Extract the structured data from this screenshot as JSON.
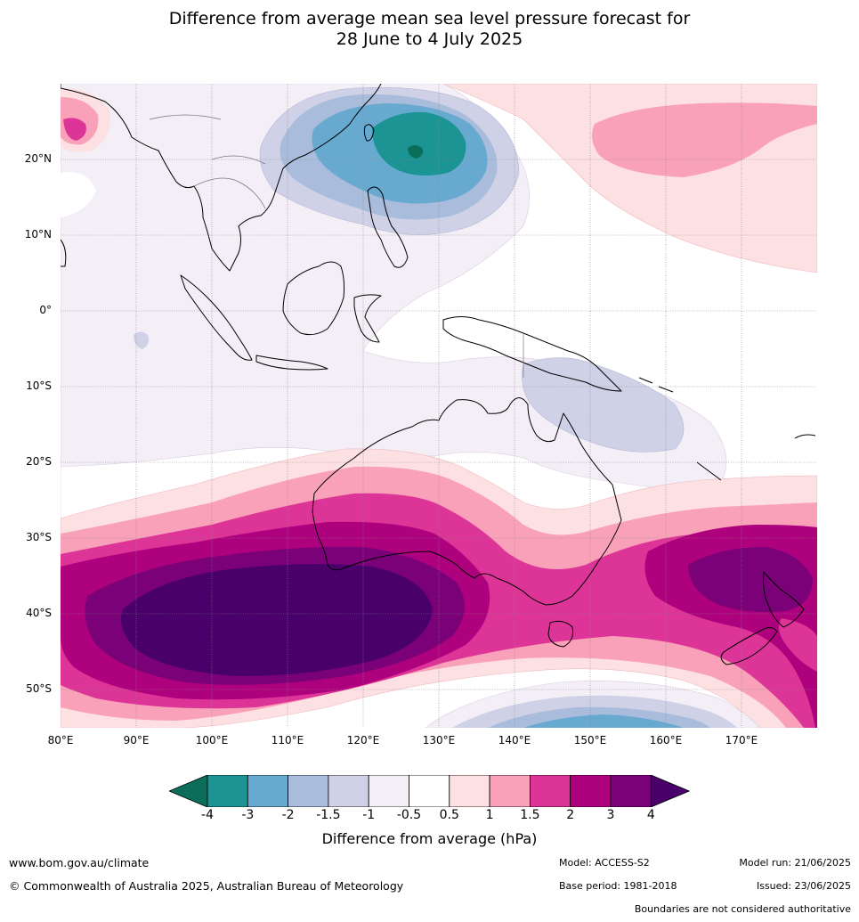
{
  "title": {
    "line1": "Difference from average mean sea level pressure forecast for",
    "line2": "28 June to 4 July 2025"
  },
  "map": {
    "lon_range": [
      80,
      180
    ],
    "lat_range": [
      -55,
      30
    ],
    "lat_ticks": [
      "20°N",
      "10°N",
      "0°",
      "10°S",
      "20°S",
      "30°S",
      "40°S",
      "50°S"
    ],
    "lon_ticks": [
      "80°E",
      "90°E",
      "100°E",
      "110°E",
      "120°E",
      "130°E",
      "140°E",
      "150°E",
      "160°E",
      "170°E"
    ],
    "features": [
      {
        "name": "low-east-of-philippines",
        "center_lon": 127,
        "center_lat": 21,
        "min_anomaly": -4
      },
      {
        "name": "high-southern-indian-ocean",
        "center_lon": 108,
        "center_lat": -40,
        "max_anomaly": 4
      },
      {
        "name": "high-new-zealand",
        "center_lon": 170,
        "center_lat": -36,
        "max_anomaly": 3
      },
      {
        "name": "high-north-pacific",
        "center_lon": 160,
        "center_lat": 25,
        "max_anomaly": 1.5
      },
      {
        "name": "low-southern-ocean",
        "center_lon": 150,
        "center_lat": -54,
        "min_anomaly": -2.5
      }
    ]
  },
  "colorbar": {
    "ticks": [
      "-4",
      "-3",
      "-2",
      "-1.5",
      "-1",
      "-0.5",
      "0.5",
      "1",
      "1.5",
      "2",
      "3",
      "4"
    ],
    "colors": [
      "#0b6e5b",
      "#1c9494",
      "#68a9d0",
      "#a9bcdb",
      "#cfd1e6",
      "#f4eef6",
      "#ffffff",
      "#fde0e1",
      "#f9a1b9",
      "#dd3497",
      "#ae017e",
      "#7a0177",
      "#49006a"
    ],
    "label": "Difference from average (hPa)"
  },
  "footer": {
    "website": "www.bom.gov.au/climate",
    "copyright": "© Commonwealth of Australia 2025, Australian Bureau of Meteorology",
    "model": "Model: ACCESS-S2",
    "base_period": "Base period: 1981-2018",
    "model_run": "Model run: 21/06/2025",
    "issued": "Issued: 23/06/2025",
    "disclaimer": "Boundaries are not considered authoritative"
  }
}
